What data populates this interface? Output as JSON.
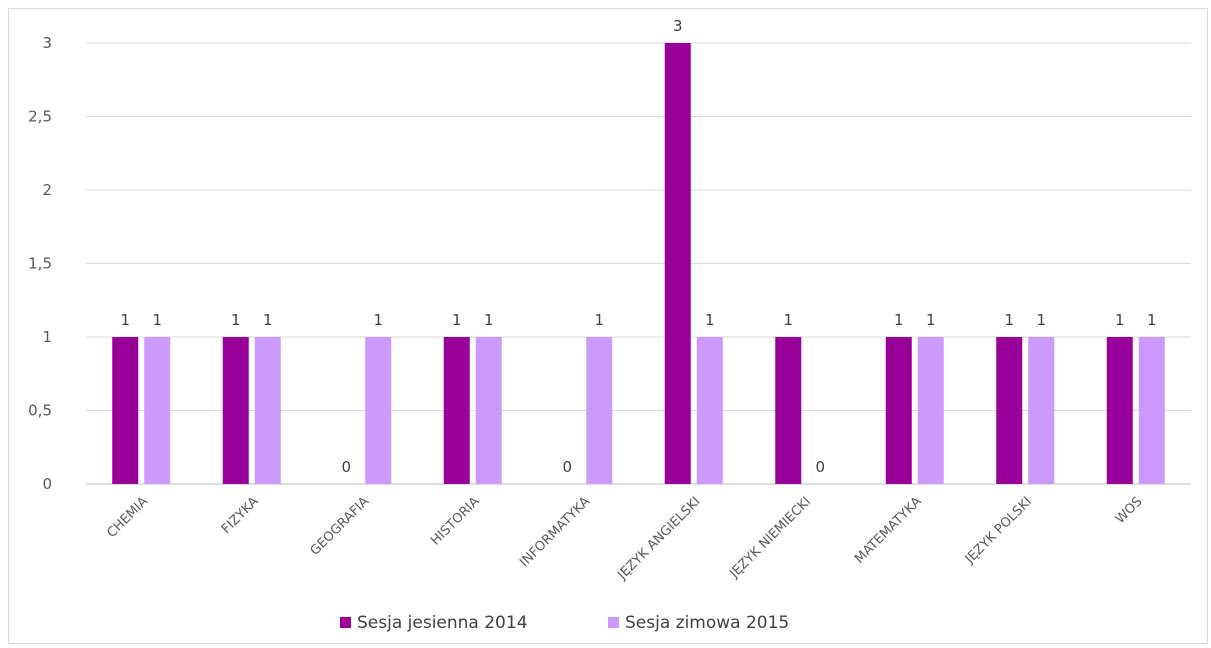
{
  "chart_data": {
    "type": "bar",
    "categories": [
      "CHEMIA",
      "FIZYKA",
      "GEOGRAFIA",
      "HISTORIA",
      "INFORMATYKA",
      "JĘZYK ANGIELSKI",
      "JĘZYK NIEMIECKI",
      "MATEMATYKA",
      "JĘZYK POLSKI",
      "WOS"
    ],
    "series": [
      {
        "name": "Sesja jesienna 2014",
        "color": "#990099",
        "values": [
          1,
          1,
          0,
          1,
          0,
          3,
          1,
          1,
          1,
          1
        ]
      },
      {
        "name": "Sesja zimowa 2015",
        "color": "#cc99ff",
        "values": [
          1,
          1,
          1,
          1,
          1,
          1,
          0,
          1,
          1,
          1
        ]
      }
    ],
    "y_ticks": [
      "0",
      "0,5",
      "1",
      "1,5",
      "2",
      "2,5",
      "3"
    ],
    "ylim": [
      0,
      3
    ],
    "grid": true,
    "legend_position": "bottom",
    "data_labels": true
  }
}
